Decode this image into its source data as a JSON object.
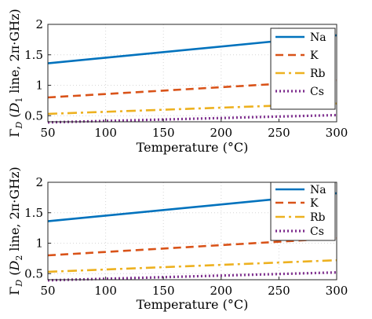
{
  "chart_data": [
    {
      "type": "line",
      "xlabel": "Temperature (°C)",
      "ylabel_parts": [
        "Γ",
        "D",
        " (",
        "D",
        "1",
        " line, 2π·GHz)"
      ],
      "xlim": [
        50,
        300
      ],
      "ylim": [
        0.4,
        2.0
      ],
      "xticks": [
        50,
        100,
        150,
        200,
        250,
        300
      ],
      "yticks": [
        0.5,
        1,
        1.5,
        2
      ],
      "ytick_labels": [
        "0.5",
        "1",
        "1.5",
        "2"
      ],
      "grid": true,
      "legend_position": "top-right",
      "x": [
        50,
        300
      ],
      "series": [
        {
          "name": "Na",
          "color": "#0072BD",
          "dash": "solid",
          "values": [
            1.36,
            1.82
          ]
        },
        {
          "name": "K",
          "color": "#D95319",
          "dash": "dashed",
          "values": [
            0.8,
            1.08
          ]
        },
        {
          "name": "Rb",
          "color": "#EDB120",
          "dash": "dashdot",
          "values": [
            0.53,
            0.7
          ]
        },
        {
          "name": "Cs",
          "color": "#7E2F8E",
          "dash": "dotted",
          "values": [
            0.39,
            0.51
          ]
        }
      ]
    },
    {
      "type": "line",
      "xlabel": "Temperature (°C)",
      "ylabel_parts": [
        "Γ",
        "D",
        " (",
        "D",
        "2",
        " line, 2π·GHz)"
      ],
      "xlim": [
        50,
        300
      ],
      "ylim": [
        0.4,
        2.0
      ],
      "xticks": [
        50,
        100,
        150,
        200,
        250,
        300
      ],
      "yticks": [
        0.5,
        1,
        1.5,
        2
      ],
      "ytick_labels": [
        "0.5",
        "1",
        "1.5",
        "2"
      ],
      "grid": true,
      "legend_position": "top-right",
      "x": [
        50,
        300
      ],
      "series": [
        {
          "name": "Na",
          "color": "#0072BD",
          "dash": "solid",
          "values": [
            1.36,
            1.82
          ]
        },
        {
          "name": "K",
          "color": "#D95319",
          "dash": "dashed",
          "values": [
            0.8,
            1.08
          ]
        },
        {
          "name": "Rb",
          "color": "#EDB120",
          "dash": "dashdot",
          "values": [
            0.53,
            0.72
          ]
        },
        {
          "name": "Cs",
          "color": "#7E2F8E",
          "dash": "dotted",
          "values": [
            0.39,
            0.52
          ]
        }
      ]
    }
  ]
}
